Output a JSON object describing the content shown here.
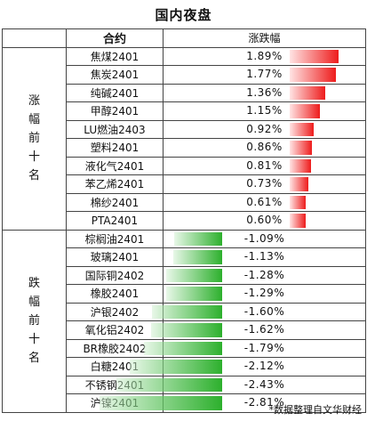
{
  "title": "国内夜盘",
  "header": {
    "name_label": "合约",
    "change_label": "涨跌幅"
  },
  "groups": {
    "top": {
      "label": "涨幅前十名"
    },
    "bottom": {
      "label": "跌幅前十名"
    }
  },
  "rows": [
    {
      "name": "焦煤2401",
      "change": "1.89%",
      "value": 1.89
    },
    {
      "name": "焦炭2401",
      "change": "1.77%",
      "value": 1.77
    },
    {
      "name": "纯碱2401",
      "change": "1.36%",
      "value": 1.36
    },
    {
      "name": "甲醇2401",
      "change": "1.15%",
      "value": 1.15
    },
    {
      "name": "LU燃油2403",
      "change": "0.92%",
      "value": 0.92
    },
    {
      "name": "塑料2401",
      "change": "0.86%",
      "value": 0.86
    },
    {
      "name": "液化气2401",
      "change": "0.81%",
      "value": 0.81
    },
    {
      "name": "苯乙烯2401",
      "change": "0.73%",
      "value": 0.73
    },
    {
      "name": "棉纱2401",
      "change": "0.61%",
      "value": 0.61
    },
    {
      "name": "PTA2401",
      "change": "0.60%",
      "value": 0.6
    },
    {
      "name": "棕榈油2401",
      "change": "-1.09%",
      "value": -1.09
    },
    {
      "name": "玻璃2401",
      "change": "-1.13%",
      "value": -1.13
    },
    {
      "name": "国际铜2402",
      "change": "-1.28%",
      "value": -1.28
    },
    {
      "name": "橡胶2401",
      "change": "-1.29%",
      "value": -1.29
    },
    {
      "name": "沪银2402",
      "change": "-1.60%",
      "value": -1.6
    },
    {
      "name": "氧化铝2402",
      "change": "-1.62%",
      "value": -1.62
    },
    {
      "name": "BR橡胶2402",
      "change": "-1.79%",
      "value": -1.79
    },
    {
      "name": "白糖2401",
      "change": "-2.12%",
      "value": -2.12
    },
    {
      "name": "不锈钢2401",
      "change": "-2.43%",
      "value": -2.43
    },
    {
      "name": "沪镍2401",
      "change": "-2.81%",
      "value": -2.81
    }
  ],
  "colors": {
    "positive": "#ee1c1c",
    "negative": "#2db02d"
  },
  "footer": "*数据整理自文华财经"
}
